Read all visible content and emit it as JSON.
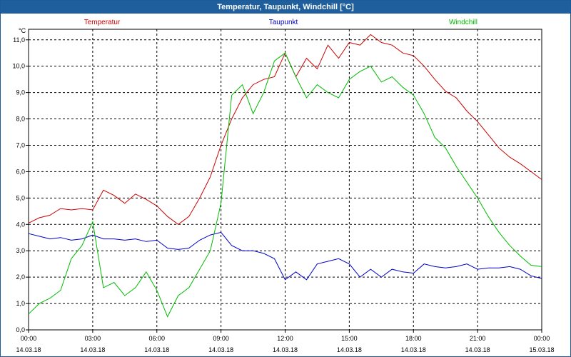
{
  "window": {
    "title": "Temperatur, Taupunkt, Windchill [°C]"
  },
  "chart_data": {
    "type": "line",
    "title": "Temperatur, Taupunkt, Windchill [°C]",
    "ylabel": "°C",
    "xlabel": "",
    "ylim": [
      0,
      11.4
    ],
    "xlim": [
      0,
      24
    ],
    "grid": true,
    "y_ticks": [
      "0,0",
      "1,0",
      "2,0",
      "3,0",
      "4,0",
      "5,0",
      "6,0",
      "7,0",
      "8,0",
      "9,0",
      "10,0",
      "11,0"
    ],
    "x_ticks": [
      {
        "time": "00:00",
        "date": "14.03.18"
      },
      {
        "time": "03:00",
        "date": "14.03.18"
      },
      {
        "time": "06:00",
        "date": "14.03.18"
      },
      {
        "time": "09:00",
        "date": "14.03.18"
      },
      {
        "time": "12:00",
        "date": "14.03.18"
      },
      {
        "time": "15:00",
        "date": "14.03.18"
      },
      {
        "time": "18:00",
        "date": "14.03.18"
      },
      {
        "time": "21:00",
        "date": "14.03.18"
      },
      {
        "time": "00:00",
        "date": "15.03.18"
      }
    ],
    "series": [
      {
        "name": "Temperatur",
        "color": "#cc0000",
        "x": [
          0,
          0.5,
          1,
          1.5,
          2,
          2.5,
          3,
          3.5,
          4,
          4.5,
          5,
          5.5,
          6,
          6.5,
          7,
          7.5,
          8,
          8.5,
          9,
          9.5,
          10,
          10.5,
          11,
          11.5,
          12,
          12.5,
          13,
          13.5,
          14,
          14.5,
          15,
          15.5,
          16,
          16.5,
          17,
          17.5,
          18,
          18.5,
          19,
          19.5,
          20,
          20.5,
          21,
          21.5,
          22,
          22.5,
          23,
          23.5,
          24
        ],
        "values": [
          4.05,
          4.25,
          4.35,
          4.6,
          4.55,
          4.6,
          4.55,
          5.3,
          5.1,
          4.8,
          5.15,
          4.95,
          4.7,
          4.3,
          4.0,
          4.3,
          5.0,
          5.8,
          7.0,
          8.0,
          8.8,
          9.3,
          9.5,
          9.6,
          10.5,
          9.6,
          10.3,
          9.9,
          10.8,
          10.3,
          10.9,
          10.8,
          11.2,
          10.9,
          10.8,
          10.5,
          10.4,
          10.0,
          9.5,
          9.05,
          8.8,
          8.3,
          7.9,
          7.4,
          6.9,
          6.55,
          6.3,
          6.0,
          5.7
        ]
      },
      {
        "name": "Taupunkt",
        "color": "#0000cc",
        "x": [
          0,
          0.5,
          1,
          1.5,
          2,
          2.5,
          3,
          3.5,
          4,
          4.5,
          5,
          5.5,
          6,
          6.5,
          7,
          7.5,
          8,
          8.5,
          9,
          9.5,
          10,
          10.5,
          11,
          11.5,
          12,
          12.5,
          13,
          13.5,
          14,
          14.5,
          15,
          15.5,
          16,
          16.5,
          17,
          17.5,
          18,
          18.5,
          19,
          19.5,
          20,
          20.5,
          21,
          21.5,
          22,
          22.5,
          23,
          23.5,
          24
        ],
        "values": [
          3.65,
          3.55,
          3.45,
          3.5,
          3.4,
          3.45,
          3.6,
          3.45,
          3.45,
          3.4,
          3.45,
          3.35,
          3.4,
          3.1,
          3.05,
          3.1,
          3.4,
          3.6,
          3.7,
          3.2,
          3.0,
          3.0,
          2.9,
          2.7,
          1.9,
          2.2,
          1.9,
          2.5,
          2.6,
          2.7,
          2.5,
          2.0,
          2.3,
          2.0,
          2.3,
          2.2,
          2.15,
          2.5,
          2.4,
          2.35,
          2.4,
          2.5,
          2.3,
          2.35,
          2.35,
          2.4,
          2.3,
          2.05,
          1.95
        ]
      },
      {
        "name": "Windchill",
        "color": "#00bb00",
        "x": [
          0,
          0.5,
          1,
          1.5,
          2,
          2.5,
          3,
          3.5,
          4,
          4.5,
          5,
          5.5,
          6,
          6.5,
          7,
          7.5,
          8,
          8.5,
          9,
          9.5,
          10,
          10.5,
          11,
          11.5,
          12,
          12.5,
          13,
          13.5,
          14,
          14.5,
          15,
          15.5,
          16,
          16.5,
          17,
          17.5,
          18,
          18.5,
          19,
          19.5,
          20,
          20.5,
          21,
          21.5,
          22,
          22.5,
          23,
          23.5,
          24
        ],
        "values": [
          0.6,
          1.0,
          1.2,
          1.5,
          2.7,
          3.2,
          4.1,
          1.6,
          1.8,
          1.3,
          1.6,
          2.2,
          1.5,
          0.5,
          1.3,
          1.6,
          2.3,
          3.0,
          4.8,
          8.9,
          9.3,
          8.2,
          9.0,
          10.2,
          10.5,
          9.6,
          8.8,
          9.3,
          9.0,
          8.8,
          9.5,
          9.8,
          10.0,
          9.4,
          9.6,
          9.2,
          8.9,
          8.2,
          7.3,
          6.9,
          6.2,
          5.6,
          5.0,
          4.3,
          3.7,
          3.2,
          2.8,
          2.45,
          2.4
        ]
      }
    ]
  }
}
